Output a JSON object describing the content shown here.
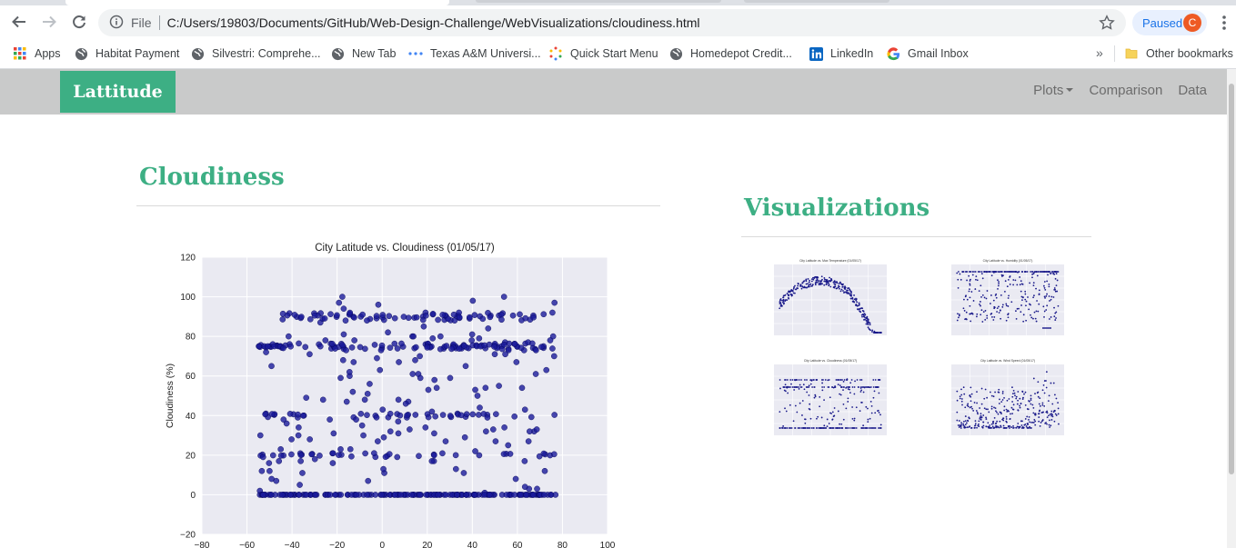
{
  "browser": {
    "scheme_label": "File",
    "url": "C:/Users/19803/Documents/GitHub/Web-Design-Challenge/WebVisualizations/cloudiness.html",
    "paused_label": "Paused",
    "avatar_initial": "C",
    "bookmarks": [
      {
        "label": "Apps",
        "icon": "apps-grid-icon"
      },
      {
        "label": "Habitat Payment",
        "icon": "globe-icon"
      },
      {
        "label": "Silvestri: Comprehe...",
        "icon": "globe-icon"
      },
      {
        "label": "New Tab",
        "icon": "globe-icon"
      },
      {
        "label": "Texas A&M Universi...",
        "icon": "dots-icon"
      },
      {
        "label": "Quick Start Menu",
        "icon": "spinner-icon"
      },
      {
        "label": "Homedepot Credit...",
        "icon": "globe-icon"
      },
      {
        "label": "LinkedIn",
        "icon": "linkedin-icon"
      },
      {
        "label": "Gmail Inbox",
        "icon": "google-icon"
      }
    ],
    "more_label": "»",
    "other_bookmarks": "Other bookmarks"
  },
  "navbar": {
    "brand": "Lattitude",
    "links": [
      "Plots",
      "Comparison",
      "Data"
    ],
    "accent": "#3daf84",
    "bg": "#c9caca"
  },
  "main": {
    "title": "Cloudiness",
    "viz_title": "Visualizations"
  },
  "chart_data": {
    "type": "scatter",
    "title": "City Latitude vs. Cloudiness (01/05/17)",
    "xlabel": "",
    "ylabel": "Cloudiness (%)",
    "xlim": [
      -80,
      100
    ],
    "ylim": [
      -20,
      120
    ],
    "xticks": [
      "−80",
      "−60",
      "−40",
      "−20",
      "0",
      "20",
      "40",
      "60",
      "80",
      "100"
    ],
    "yticks": [
      "120",
      "100",
      "80",
      "60",
      "40",
      "20",
      "0",
      "−20"
    ],
    "point_color": "#1a1a9a",
    "grid": true,
    "background": "#eaeaf2"
  },
  "thumbnails": [
    {
      "title": "City Latitude vs. Max Temperature (01/05/17)",
      "kind": "temperature"
    },
    {
      "title": "City Latitude vs. Humidity (01/05/17)",
      "kind": "humidity"
    },
    {
      "title": "City Latitude vs. Cloudiness (01/05/17)",
      "kind": "cloudiness"
    },
    {
      "title": "City Latitude vs. Wind Speed (01/05/17)",
      "kind": "wind"
    }
  ]
}
